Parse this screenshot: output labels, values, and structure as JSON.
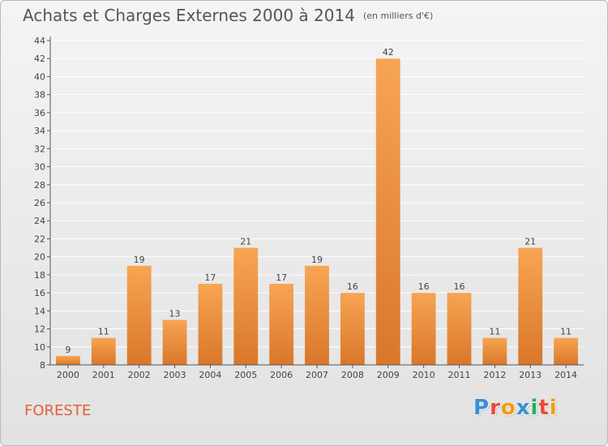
{
  "header": {
    "title": "Achats et Charges Externes 2000 à 2014",
    "unit": "(en milliers d'€)"
  },
  "commune": "FORESTE",
  "logo": {
    "letters": [
      "P",
      "r",
      "o",
      "x",
      "i",
      "t",
      "i"
    ],
    "colors": [
      "#3a8fd6",
      "#e94b3c",
      "#f39c12",
      "#3a8fd6",
      "#27ae60",
      "#e94b3c",
      "#f39c12"
    ]
  },
  "chart_data": {
    "type": "bar",
    "title": "Achats et Charges Externes 2000 à 2014",
    "categories": [
      "2000",
      "2001",
      "2002",
      "2003",
      "2004",
      "2005",
      "2006",
      "2007",
      "2008",
      "2009",
      "2010",
      "2011",
      "2012",
      "2013",
      "2014"
    ],
    "values": [
      9,
      11,
      19,
      13,
      17,
      21,
      17,
      19,
      16,
      42,
      16,
      16,
      11,
      21,
      11
    ],
    "ylim": [
      8,
      44
    ],
    "yticks": [
      8,
      10,
      12,
      14,
      16,
      18,
      20,
      22,
      24,
      26,
      28,
      30,
      32,
      34,
      36,
      38,
      40,
      42,
      44
    ],
    "grid": true,
    "bar_color": "#f0943a",
    "grid_color": "#ffffff"
  }
}
